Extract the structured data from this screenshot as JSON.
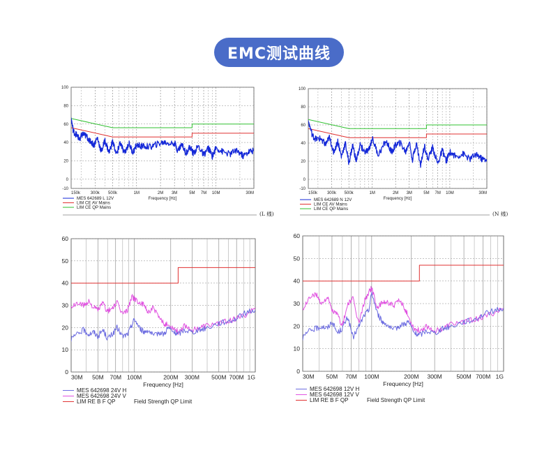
{
  "page": {
    "title": "EMC测试曲线"
  },
  "colors": {
    "title_bg": "#4a6cc8",
    "blue": "#1428d8",
    "red": "#e03030",
    "green": "#30c030",
    "violet": "#6a6ae0",
    "magenta": "#e050e0"
  },
  "chart_data": [
    {
      "id": "ce_l",
      "type": "line",
      "xscale": "log",
      "xlabel": "Frequency [Hz]",
      "ylabel": "",
      "xlim": [
        150000,
        30000000
      ],
      "ylim": [
        -10,
        100
      ],
      "yticks": [
        -10,
        0,
        20,
        40,
        60,
        80,
        100
      ],
      "xticks": [
        {
          "v": 150000,
          "label": "150k"
        },
        {
          "v": 300000,
          "label": "300k"
        },
        {
          "v": 500000,
          "label": "500k"
        },
        {
          "v": 1000000,
          "label": "1M"
        },
        {
          "v": 2000000,
          "label": "2M"
        },
        {
          "v": 3000000,
          "label": "3M"
        },
        {
          "v": 5000000,
          "label": "5M"
        },
        {
          "v": 7000000,
          "label": "7M"
        },
        {
          "v": 10000000,
          "label": "10M"
        },
        {
          "v": 30000000,
          "label": "30M"
        }
      ],
      "annotation": "(L 线)",
      "legend": [
        {
          "label": "MES  642689 L 12V",
          "color": "#1428d8"
        },
        {
          "label": "LIM  CE AV Mains",
          "color": "#e03030"
        },
        {
          "label": "LIM  CE QP Mains",
          "color": "#30c030"
        }
      ],
      "series": [
        {
          "name": "LIM CE QP Mains",
          "color": "#30c030",
          "width": 1,
          "x": [
            150000,
            500000,
            5000000,
            5000000,
            30000000
          ],
          "y": [
            66,
            56,
            56,
            60,
            60
          ]
        },
        {
          "name": "LIM CE AV Mains",
          "color": "#e03030",
          "width": 1,
          "x": [
            150000,
            500000,
            5000000,
            5000000,
            30000000
          ],
          "y": [
            56,
            46,
            46,
            50,
            50
          ]
        },
        {
          "name": "MES 642689 L 12V",
          "color": "#1428d8",
          "width": 1.3,
          "x": [
            150000,
            160000,
            175000,
            190000,
            210000,
            230000,
            260000,
            290000,
            320000,
            360000,
            400000,
            450000,
            500000,
            560000,
            620000,
            700000,
            800000,
            900000,
            1000000,
            1200000,
            1500000,
            1800000,
            2200000,
            2700000,
            3000000,
            3300000,
            3700000,
            4200000,
            4700000,
            5200000,
            6000000,
            7000000,
            8000000,
            9000000,
            10000000,
            12000000,
            15000000,
            18000000,
            22000000,
            26000000,
            30000000
          ],
          "y": [
            66,
            52,
            48,
            44,
            49,
            47,
            42,
            37,
            45,
            30,
            42,
            29,
            41,
            27,
            40,
            28,
            39,
            29,
            37,
            36,
            35,
            38,
            40,
            39,
            40,
            31,
            38,
            29,
            35,
            28,
            36,
            26,
            34,
            25,
            34,
            30,
            27,
            32,
            25,
            30,
            31
          ]
        }
      ]
    },
    {
      "id": "ce_n",
      "type": "line",
      "xscale": "log",
      "xlabel": "Frequency [Hz]",
      "ylabel": "",
      "xlim": [
        150000,
        30000000
      ],
      "ylim": [
        -10,
        100
      ],
      "yticks": [
        -10,
        0,
        20,
        40,
        60,
        80,
        100
      ],
      "xticks": [
        {
          "v": 150000,
          "label": "150k"
        },
        {
          "v": 300000,
          "label": "300k"
        },
        {
          "v": 500000,
          "label": "500k"
        },
        {
          "v": 1000000,
          "label": "1M"
        },
        {
          "v": 2000000,
          "label": "2M"
        },
        {
          "v": 3000000,
          "label": "3M"
        },
        {
          "v": 5000000,
          "label": "5M"
        },
        {
          "v": 7000000,
          "label": "7M"
        },
        {
          "v": 10000000,
          "label": "10M"
        },
        {
          "v": 30000000,
          "label": "30M"
        }
      ],
      "annotation": "(N 线)",
      "legend": [
        {
          "label": "MES  642689 N 12V",
          "color": "#1428d8"
        },
        {
          "label": "LIM  CE AV Mains",
          "color": "#e03030"
        },
        {
          "label": "LIM  CE QP Mains",
          "color": "#30c030"
        }
      ],
      "series": [
        {
          "name": "LIM CE QP Mains",
          "color": "#30c030",
          "width": 1,
          "x": [
            150000,
            500000,
            5000000,
            5000000,
            30000000
          ],
          "y": [
            66,
            56,
            56,
            60,
            60
          ]
        },
        {
          "name": "LIM CE AV Mains",
          "color": "#e03030",
          "width": 1,
          "x": [
            150000,
            500000,
            5000000,
            5000000,
            30000000
          ],
          "y": [
            56,
            46,
            46,
            50,
            50
          ]
        },
        {
          "name": "MES 642689 N 12V",
          "color": "#1428d8",
          "width": 1.3,
          "x": [
            150000,
            170000,
            190000,
            220000,
            250000,
            280000,
            320000,
            360000,
            400000,
            450000,
            500000,
            560000,
            620000,
            700000,
            800000,
            900000,
            1000000,
            1200000,
            1500000,
            1800000,
            2000000,
            2300000,
            2700000,
            3000000,
            3300000,
            3700000,
            4200000,
            4700000,
            5200000,
            6000000,
            7000000,
            8000000,
            9000000,
            10000000,
            12000000,
            15000000,
            18000000,
            22000000,
            26000000,
            30000000
          ],
          "y": [
            64,
            48,
            44,
            45,
            38,
            46,
            30,
            42,
            25,
            40,
            18,
            38,
            20,
            38,
            30,
            32,
            45,
            27,
            42,
            30,
            38,
            40,
            30,
            42,
            22,
            40,
            15,
            38,
            22,
            35,
            17,
            32,
            20,
            30,
            25,
            28,
            22,
            28,
            22,
            22
          ]
        }
      ]
    },
    {
      "id": "re_24v",
      "type": "line",
      "xscale": "log",
      "xlabel": "Frequency [Hz]",
      "ylabel": "",
      "xlim": [
        30000000,
        1000000000
      ],
      "ylim": [
        0,
        60
      ],
      "yticks": [
        0,
        10,
        20,
        30,
        40,
        50,
        60
      ],
      "xticks": [
        {
          "v": 30000000,
          "label": "30M"
        },
        {
          "v": 50000000,
          "label": "50M"
        },
        {
          "v": 70000000,
          "label": "70M"
        },
        {
          "v": 100000000,
          "label": "100M"
        },
        {
          "v": 200000000,
          "label": "200M"
        },
        {
          "v": 300000000,
          "label": "300M"
        },
        {
          "v": 500000000,
          "label": "500M"
        },
        {
          "v": 700000000,
          "label": "700M"
        },
        {
          "v": 1000000000,
          "label": "1G"
        }
      ],
      "annotation": "",
      "legend": [
        {
          "label": "MES  642698 24V H",
          "color": "#6a6ae0"
        },
        {
          "label": "MES  642698 24V V",
          "color": "#e050e0"
        },
        {
          "label": "LIM  RE B F QP",
          "color": "#e03030"
        }
      ],
      "legend_note": "Field Strength QP Limit",
      "series": [
        {
          "name": "LIM RE B F QP",
          "color": "#e03030",
          "width": 1,
          "x": [
            30000000,
            230000000,
            230000000,
            1000000000
          ],
          "y": [
            40,
            40,
            47,
            47
          ]
        },
        {
          "name": "MES 642698 24V V",
          "color": "#e050e0",
          "width": 1,
          "x": [
            30000000,
            34000000,
            38000000,
            42000000,
            46000000,
            50000000,
            55000000,
            60000000,
            66000000,
            72000000,
            80000000,
            88000000,
            95000000,
            100000000,
            110000000,
            120000000,
            130000000,
            145000000,
            160000000,
            175000000,
            190000000,
            210000000,
            230000000,
            260000000,
            300000000,
            350000000,
            400000000,
            500000000,
            600000000,
            700000000,
            850000000,
            1000000000
          ],
          "y": [
            29,
            31,
            30,
            32,
            29,
            28,
            31,
            27,
            29,
            31,
            26,
            28,
            34,
            33,
            31,
            30,
            27,
            29,
            24,
            22,
            21,
            20,
            18,
            21,
            19,
            20,
            21,
            22,
            23,
            24,
            26,
            29
          ]
        },
        {
          "name": "MES 642698 24V H",
          "color": "#6a6ae0",
          "width": 1,
          "x": [
            30000000,
            34000000,
            38000000,
            42000000,
            46000000,
            50000000,
            55000000,
            60000000,
            66000000,
            72000000,
            80000000,
            88000000,
            95000000,
            100000000,
            110000000,
            120000000,
            130000000,
            145000000,
            160000000,
            175000000,
            190000000,
            210000000,
            230000000,
            260000000,
            300000000,
            350000000,
            400000000,
            500000000,
            600000000,
            700000000,
            850000000,
            1000000000
          ],
          "y": [
            15,
            17,
            19,
            17,
            18,
            16,
            19,
            15,
            17,
            20,
            16,
            17,
            21,
            24,
            20,
            18,
            19,
            16,
            18,
            17,
            20,
            18,
            17,
            19,
            18,
            19,
            20,
            22,
            23,
            24,
            27,
            28
          ]
        }
      ]
    },
    {
      "id": "re_12v",
      "type": "line",
      "xscale": "log",
      "xlabel": "Frequency [Hz]",
      "ylabel": "",
      "xlim": [
        30000000,
        1000000000
      ],
      "ylim": [
        0,
        60
      ],
      "yticks": [
        0,
        10,
        20,
        30,
        40,
        50,
        60
      ],
      "xticks": [
        {
          "v": 30000000,
          "label": "30M"
        },
        {
          "v": 50000000,
          "label": "50M"
        },
        {
          "v": 70000000,
          "label": "70M"
        },
        {
          "v": 100000000,
          "label": "100M"
        },
        {
          "v": 200000000,
          "label": "200M"
        },
        {
          "v": 300000000,
          "label": "300M"
        },
        {
          "v": 500000000,
          "label": "500M"
        },
        {
          "v": 700000000,
          "label": "700M"
        },
        {
          "v": 1000000000,
          "label": "1G"
        }
      ],
      "annotation": "",
      "legend": [
        {
          "label": "MES  642698 12V H",
          "color": "#6a6ae0"
        },
        {
          "label": "MES  642698 12V V",
          "color": "#e050e0"
        },
        {
          "label": "LIM  RE B F QP",
          "color": "#e03030"
        }
      ],
      "legend_note": "Field Strength QP Limit",
      "series": [
        {
          "name": "LIM RE B F QP",
          "color": "#e03030",
          "width": 1,
          "x": [
            30000000,
            230000000,
            230000000,
            1000000000
          ],
          "y": [
            40,
            40,
            47,
            47
          ]
        },
        {
          "name": "MES 642698 12V V",
          "color": "#e050e0",
          "width": 1,
          "x": [
            30000000,
            34000000,
            38000000,
            42000000,
            46000000,
            50000000,
            55000000,
            60000000,
            66000000,
            72000000,
            80000000,
            88000000,
            95000000,
            100000000,
            110000000,
            120000000,
            130000000,
            145000000,
            160000000,
            175000000,
            190000000,
            210000000,
            230000000,
            260000000,
            300000000,
            350000000,
            400000000,
            500000000,
            600000000,
            700000000,
            850000000,
            1000000000
          ],
          "y": [
            27,
            33,
            34,
            30,
            33,
            27,
            25,
            20,
            30,
            32,
            21,
            31,
            35,
            37,
            28,
            30,
            31,
            29,
            31,
            29,
            24,
            19,
            18,
            20,
            18,
            19,
            21,
            22,
            23,
            24,
            26,
            28
          ]
        },
        {
          "name": "MES 642698 12V H",
          "color": "#6a6ae0",
          "width": 1,
          "x": [
            30000000,
            34000000,
            38000000,
            42000000,
            46000000,
            50000000,
            55000000,
            60000000,
            66000000,
            72000000,
            80000000,
            88000000,
            95000000,
            100000000,
            110000000,
            120000000,
            130000000,
            145000000,
            160000000,
            175000000,
            190000000,
            210000000,
            230000000,
            260000000,
            300000000,
            350000000,
            400000000,
            500000000,
            600000000,
            700000000,
            850000000,
            1000000000
          ],
          "y": [
            15,
            18,
            19,
            20,
            19,
            22,
            17,
            19,
            24,
            15,
            20,
            25,
            27,
            35,
            26,
            22,
            21,
            18,
            20,
            21,
            22,
            17,
            16,
            18,
            17,
            19,
            20,
            22,
            23,
            25,
            27,
            28
          ]
        }
      ]
    }
  ]
}
